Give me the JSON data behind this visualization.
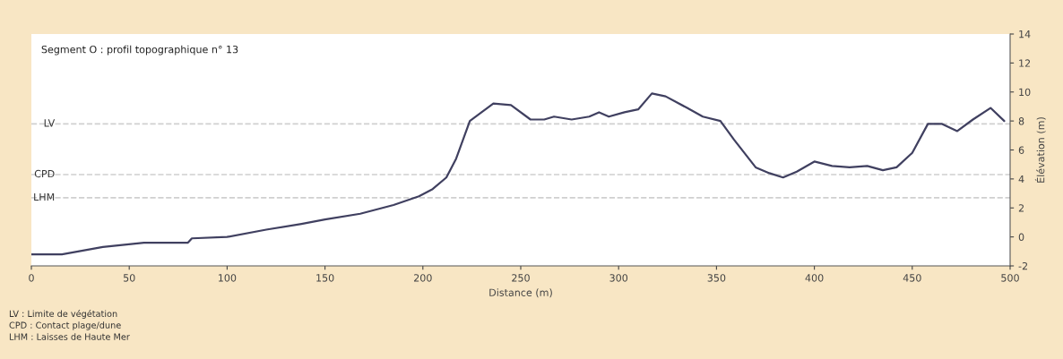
{
  "chart_data": {
    "type": "line",
    "title": "Segment O : profil topographique n° 13",
    "xlabel": "Distance (m)",
    "ylabel": "Élévation (m)",
    "x": [
      0,
      15.6,
      36.5,
      57.5,
      80,
      82,
      100,
      120,
      138,
      150,
      168,
      185,
      198,
      205,
      212,
      217,
      224,
      236,
      245,
      255,
      262,
      267,
      276,
      285,
      290,
      295,
      303,
      310,
      317,
      324,
      335,
      343,
      352,
      359,
      370,
      377,
      384,
      391,
      400,
      409,
      418,
      427,
      435,
      442,
      450,
      458,
      465,
      473,
      481,
      490,
      497
    ],
    "series": [
      {
        "color": "#404060",
        "values": [
          -1.2,
          -1.2,
          -0.7,
          -0.4,
          -0.4,
          -0.1,
          0,
          0.5,
          0.9,
          1.2,
          1.6,
          2.2,
          2.8,
          3.3,
          4.1,
          5.4,
          8.0,
          9.2,
          9.1,
          8.1,
          8.1,
          8.3,
          8.1,
          8.3,
          8.6,
          8.3,
          8.6,
          8.8,
          9.9,
          9.7,
          8.9,
          8.3,
          8.0,
          6.7,
          4.8,
          4.4,
          4.1,
          4.5,
          5.2,
          4.9,
          4.8,
          4.9,
          4.6,
          4.8,
          5.8,
          7.8,
          7.8,
          7.3,
          8.1,
          8.9,
          8.0
        ]
      }
    ],
    "xlim": [
      0,
      500
    ],
    "ylim": [
      -2,
      14
    ],
    "xticks": [
      0,
      50,
      100,
      150,
      200,
      250,
      300,
      350,
      400,
      450,
      500
    ],
    "yticks": [
      -2,
      0,
      2,
      4,
      6,
      8,
      10,
      12,
      14
    ],
    "ref_lines": [
      {
        "axis": "y",
        "value": 7.8,
        "label": "LV",
        "color": "#d0d0d0",
        "line_style": "dashed"
      },
      {
        "axis": "y",
        "value": 4.3,
        "label": "CPD",
        "color": "#d0d0d0",
        "line_style": "dashed"
      },
      {
        "axis": "y",
        "value": 2.7,
        "label": "LHM",
        "color": "#d0d0d0",
        "line_style": "dashed"
      }
    ],
    "annotations": [
      "LV : Limite de végétation",
      "CPD : Contact plage/dune",
      "LHM : Laisses de Haute Mer"
    ],
    "grid": false,
    "legend": false
  }
}
